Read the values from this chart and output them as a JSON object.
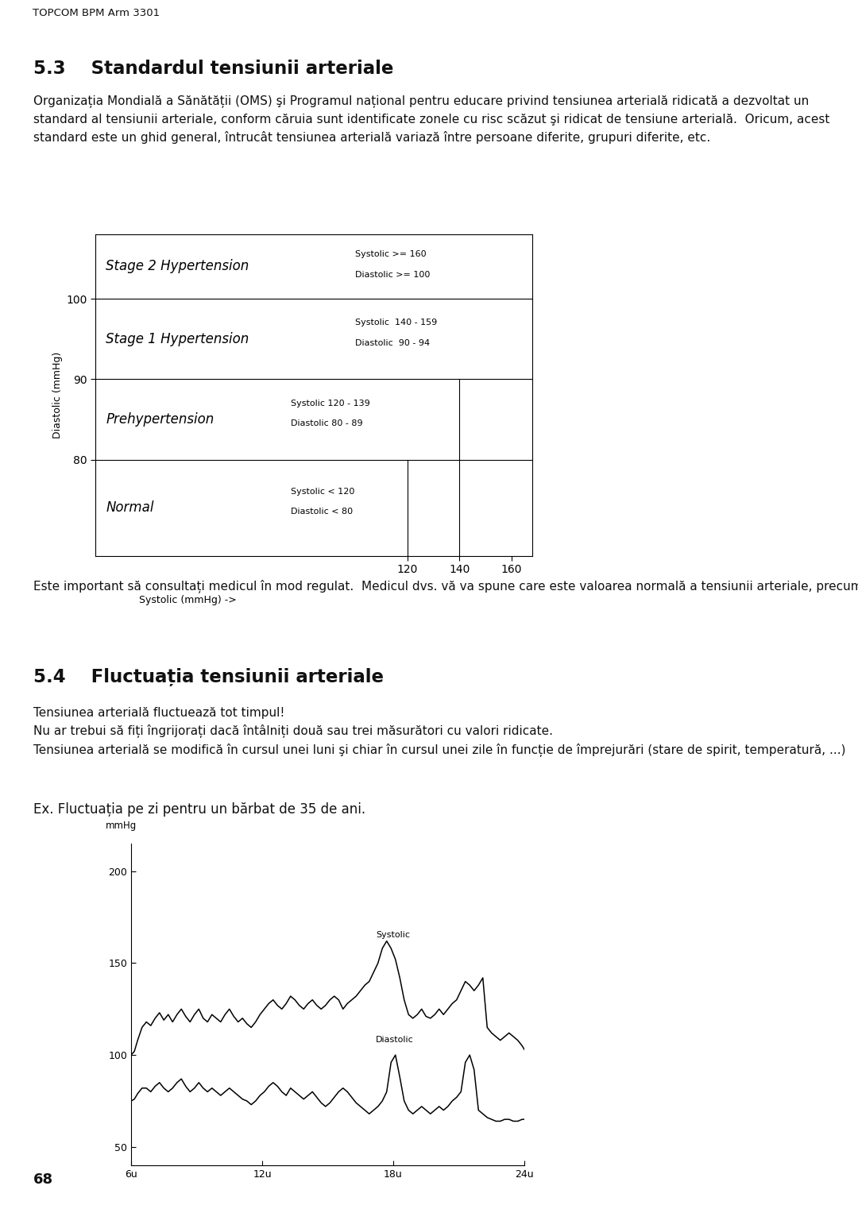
{
  "page_header": "TOPCOM BPM Arm 3301",
  "section1_num": "5.3",
  "section1_title": "Standardul tensiunii arteriale",
  "section1_body": "Organizația Mondială a Sănătății (OMS) şi Programul național pentru educare privind tensiunea arterială ridicată a dezvoltat un standard al tensiunii arteriale, conform căruia sunt identificate zonele cu risc scăzut şi ridicat de tensiune arterială.  Oricum, acest standard este un ghid general, întrucât tensiunea arterială variază între persoane diferite, grupuri diferite, etc.",
  "table_rows": [
    {
      "label": "Stage 2 Hypertension",
      "sys": "Systolic >= 160",
      "dia": "Diastolic >= 100",
      "ybot": 100,
      "ytop": 107
    },
    {
      "label": "Stage 1 Hypertension",
      "sys": "Systolic  140 - 159",
      "dia": "Diastolic  90 - 94",
      "ybot": 90,
      "ytop": 100
    },
    {
      "label": "Prehypertension",
      "sys": "Systolic 120 - 139",
      "dia": "Diastolic 80 - 89",
      "ybot": 80,
      "ytop": 90
    },
    {
      "label": "Normal",
      "sys": "Systolic < 120",
      "dia": "Diastolic < 80",
      "ybot": 70,
      "ytop": 80
    }
  ],
  "mid_text": "Este important să consultați medicul în mod regulat.  Medicul dvs. vă va spune care este valoarea normală a tensiunii arteriale, precum şi care este punctul la care se consideră că sunteți în pericol.",
  "section2_num": "5.4",
  "section2_title": "Fluctuația tensiunii arteriale",
  "section2_body": "Tensiunea arterială fluctuează tot timpul!\nNu ar trebui să fiți îngrijorați dacă întâlniți două sau trei măsurători cu valori ridicate.\nTensiunea arterială se modifică în cursul unei luni şi chiar în cursul unei zile în funcție de împrejurări (stare de spirit, temperatură, ...)",
  "chart_intro": "Ex. Fluctuația pe zi pentru un bărbat de 35 de ani.",
  "page_number": "68",
  "bg": "#ffffff",
  "header_bg": "#cccccc",
  "systolic_x": [
    6.0,
    6.15,
    6.3,
    6.5,
    6.7,
    6.9,
    7.1,
    7.3,
    7.5,
    7.7,
    7.9,
    8.1,
    8.3,
    8.5,
    8.7,
    8.9,
    9.1,
    9.3,
    9.5,
    9.7,
    9.9,
    10.1,
    10.3,
    10.5,
    10.7,
    10.9,
    11.1,
    11.3,
    11.5,
    11.7,
    11.9,
    12.1,
    12.3,
    12.5,
    12.7,
    12.9,
    13.1,
    13.3,
    13.5,
    13.7,
    13.9,
    14.1,
    14.3,
    14.5,
    14.7,
    14.9,
    15.1,
    15.3,
    15.5,
    15.7,
    15.9,
    16.1,
    16.3,
    16.5,
    16.7,
    16.9,
    17.1,
    17.3,
    17.5,
    17.7,
    17.9,
    18.1,
    18.3,
    18.5,
    18.7,
    18.9,
    19.1,
    19.3,
    19.5,
    19.7,
    19.9,
    20.1,
    20.3,
    20.5,
    20.7,
    20.9,
    21.1,
    21.3,
    21.5,
    21.7,
    21.9,
    22.1,
    22.3,
    22.5,
    22.7,
    22.9,
    23.1,
    23.3,
    23.5,
    23.7,
    23.9,
    24.0
  ],
  "systolic_y": [
    100,
    102,
    108,
    115,
    118,
    116,
    120,
    123,
    119,
    122,
    118,
    122,
    125,
    121,
    118,
    122,
    125,
    120,
    118,
    122,
    120,
    118,
    122,
    125,
    121,
    118,
    120,
    117,
    115,
    118,
    122,
    125,
    128,
    130,
    127,
    125,
    128,
    132,
    130,
    127,
    125,
    128,
    130,
    127,
    125,
    127,
    130,
    132,
    130,
    125,
    128,
    130,
    132,
    135,
    138,
    140,
    145,
    150,
    158,
    162,
    158,
    152,
    142,
    130,
    122,
    120,
    122,
    125,
    121,
    120,
    122,
    125,
    122,
    125,
    128,
    130,
    135,
    140,
    138,
    135,
    138,
    142,
    115,
    112,
    110,
    108,
    110,
    112,
    110,
    108,
    105,
    103
  ],
  "diastolic_y": [
    75,
    76,
    79,
    82,
    82,
    80,
    83,
    85,
    82,
    80,
    82,
    85,
    87,
    83,
    80,
    82,
    85,
    82,
    80,
    82,
    80,
    78,
    80,
    82,
    80,
    78,
    76,
    75,
    73,
    75,
    78,
    80,
    83,
    85,
    83,
    80,
    78,
    82,
    80,
    78,
    76,
    78,
    80,
    77,
    74,
    72,
    74,
    77,
    80,
    82,
    80,
    77,
    74,
    72,
    70,
    68,
    70,
    72,
    75,
    80,
    96,
    100,
    88,
    75,
    70,
    68,
    70,
    72,
    70,
    68,
    70,
    72,
    70,
    72,
    75,
    77,
    80,
    96,
    100,
    92,
    70,
    68,
    66,
    65,
    64,
    64,
    65,
    65,
    64,
    64,
    65,
    65
  ]
}
